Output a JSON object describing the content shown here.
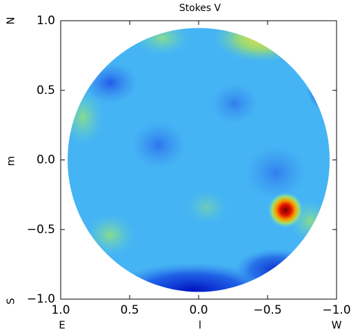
{
  "chart_data": {
    "type": "image",
    "title": "Stokes V",
    "ylabel": "m",
    "xlabel": "l",
    "corner_labels": {
      "top": "N",
      "bottom": "S",
      "left": "E",
      "right": "W"
    },
    "xlim": [
      1.0,
      -1.0
    ],
    "ylim": [
      -1.0,
      1.0
    ],
    "xticks": [
      {
        "value": 1.0,
        "label": "1.0"
      },
      {
        "value": 0.5,
        "label": "0.5"
      },
      {
        "value": 0.0,
        "label": "0.0"
      },
      {
        "value": -0.5,
        "label": "−0.5"
      },
      {
        "value": -1.0,
        "label": "−1.0"
      }
    ],
    "yticks": [
      {
        "value": -1.0,
        "label": "−1.0"
      },
      {
        "value": -0.5,
        "label": "−0.5"
      },
      {
        "value": 0.0,
        "label": "0.0"
      },
      {
        "value": 0.5,
        "label": "0.5"
      },
      {
        "value": 1.0,
        "label": "1.0"
      }
    ],
    "source": {
      "x": -0.63,
      "y": -0.36
    }
  }
}
